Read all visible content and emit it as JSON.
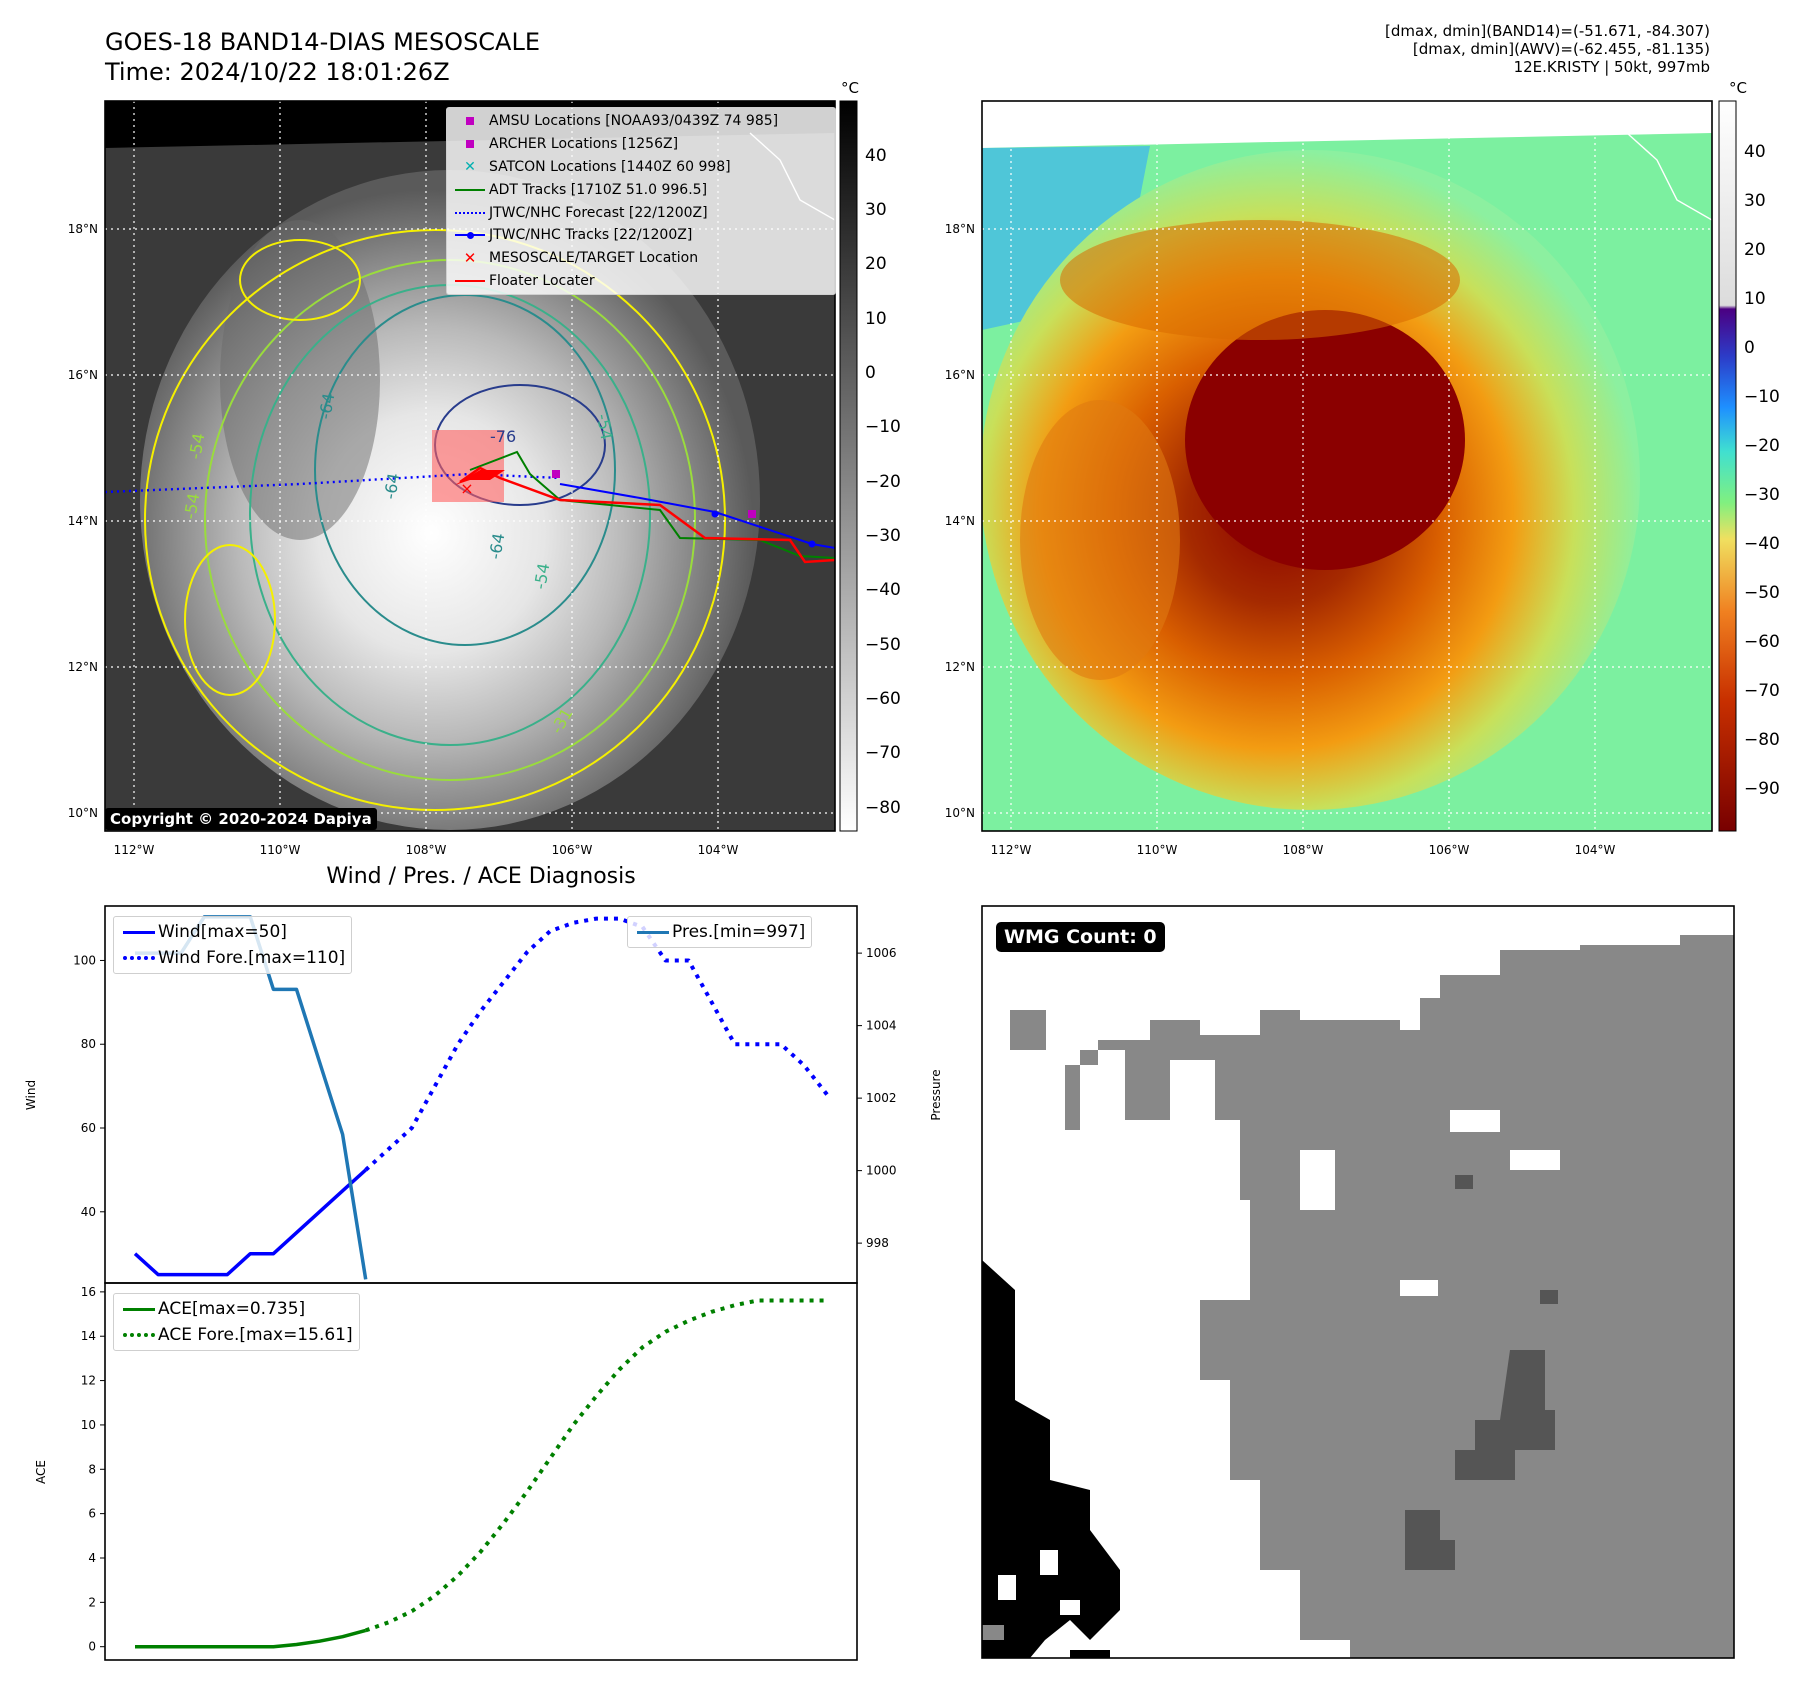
{
  "header": {
    "title_line1": "GOES-18 BAND14-DIAS MESOSCALE",
    "title_line2": "Time: 2024/10/22 18:01:26Z",
    "info_line1": "[dmax, dmin](BAND14)=(-51.671, -84.307)",
    "info_line2": "[dmax, dmin](AWV)=(-62.455, -81.135)",
    "info_line3": "12E.KRISTY | 50kt, 997mb"
  },
  "map_axes": {
    "lon_ticks": [
      "112°W",
      "110°W",
      "108°W",
      "106°W",
      "104°W"
    ],
    "lat_ticks": [
      "18°N",
      "16°N",
      "14°N",
      "12°N",
      "10°N"
    ]
  },
  "ir_panel": {
    "colorbar_unit": "°C",
    "colorbar_ticks": [
      "40",
      "30",
      "20",
      "10",
      "0",
      "−10",
      "−20",
      "−30",
      "−40",
      "−50",
      "−60",
      "−70",
      "−80"
    ],
    "contour_labels": [
      "-76",
      "-64",
      "-54",
      "-64",
      "-54",
      "-54",
      "-64",
      "-31",
      "-54"
    ],
    "legend": [
      {
        "label": "AMSU Locations [NOAA93/0439Z 74 985]",
        "symbol": "square",
        "color": "#c000c0"
      },
      {
        "label": "ARCHER Locations [1256Z]",
        "symbol": "square",
        "color": "#c000c0"
      },
      {
        "label": "SATCON Locations [1440Z 60 998]",
        "symbol": "cross",
        "color": "#00b0b0"
      },
      {
        "label": "ADT Tracks [1710Z 51.0 996.5]",
        "symbol": "line",
        "color": "#008000"
      },
      {
        "label": "JTWC/NHC Forecast [22/1200Z]",
        "symbol": "dotted",
        "color": "#0000ff"
      },
      {
        "label": "JTWC/NHC Tracks [22/1200Z]",
        "symbol": "line-dot",
        "color": "#0000ff"
      },
      {
        "label": "MESOSCALE/TARGET Location",
        "symbol": "x",
        "color": "#ff0000"
      },
      {
        "label": "Floater Locater",
        "symbol": "line",
        "color": "#ff0000"
      }
    ],
    "copyright": "Copyright © 2020-2024 Dapiya"
  },
  "awv_panel": {
    "colorbar_unit": "°C",
    "colorbar_ticks": [
      "40",
      "30",
      "20",
      "10",
      "0",
      "−10",
      "−20",
      "−30",
      "−40",
      "−50",
      "−60",
      "−70",
      "−80",
      "−90"
    ]
  },
  "wmg_panel": {
    "badge": "WMG Count: 0"
  },
  "chart_data": [
    {
      "type": "line",
      "title": "Wind / Pres. / ACE Diagnosis",
      "ylabel": "Wind",
      "ylim": [
        23,
        113
      ],
      "yticks": [
        40,
        60,
        80,
        100
      ],
      "series": [
        {
          "name": "Wind[max=50]",
          "style": "solid",
          "color": "#0000ff",
          "x": [
            0,
            1,
            2,
            3,
            4,
            5,
            6,
            7,
            8,
            9,
            10
          ],
          "values": [
            30,
            25,
            25,
            25,
            25,
            30,
            30,
            35,
            40,
            45,
            50
          ]
        },
        {
          "name": "Wind Fore.[max=110]",
          "style": "dotted",
          "color": "#0000ff",
          "x": [
            10,
            11,
            12,
            13,
            14,
            15,
            16,
            17,
            18,
            19,
            20,
            21,
            22,
            23,
            24,
            25,
            26,
            27,
            28,
            29,
            30
          ],
          "values": [
            50,
            55,
            60,
            70,
            80,
            88,
            95,
            102,
            107,
            109,
            110,
            110,
            108,
            100,
            100,
            90,
            80,
            80,
            80,
            75,
            68
          ]
        }
      ],
      "secondary_axis": {
        "ylabel": "Pressure",
        "ylim": [
          996.9,
          1007.3
        ],
        "yticks": [
          998,
          1000,
          1002,
          1004,
          1006
        ],
        "series": [
          {
            "name": "Pres.[min=997]",
            "style": "solid",
            "color": "#1f77b4",
            "x": [
              0,
              1,
              2,
              3,
              4,
              5,
              6,
              7,
              8,
              9,
              10
            ],
            "values": [
              1006,
              1006,
              1006,
              1007,
              1007,
              1007,
              1005,
              1005,
              1003,
              1001,
              997
            ]
          }
        ]
      }
    },
    {
      "type": "line",
      "ylabel": "ACE",
      "ylim": [
        -0.6,
        16.4
      ],
      "yticks": [
        0,
        2,
        4,
        6,
        8,
        10,
        12,
        14,
        16
      ],
      "series": [
        {
          "name": "ACE[max=0.735]",
          "style": "solid",
          "color": "#008000",
          "x": [
            0,
            1,
            2,
            3,
            4,
            5,
            6,
            7,
            8,
            9,
            10
          ],
          "values": [
            0,
            0,
            0,
            0,
            0,
            0,
            0,
            0.1,
            0.25,
            0.45,
            0.735
          ]
        },
        {
          "name": "ACE Fore.[max=15.61]",
          "style": "dotted",
          "color": "#008000",
          "x": [
            10,
            11,
            12,
            13,
            14,
            15,
            16,
            17,
            18,
            19,
            20,
            21,
            22,
            23,
            24,
            25,
            26,
            27,
            28,
            29,
            30
          ],
          "values": [
            0.735,
            1.1,
            1.6,
            2.3,
            3.2,
            4.3,
            5.6,
            7.0,
            8.5,
            10.0,
            11.3,
            12.5,
            13.5,
            14.2,
            14.7,
            15.1,
            15.4,
            15.61,
            15.61,
            15.61,
            15.61
          ]
        }
      ]
    }
  ]
}
